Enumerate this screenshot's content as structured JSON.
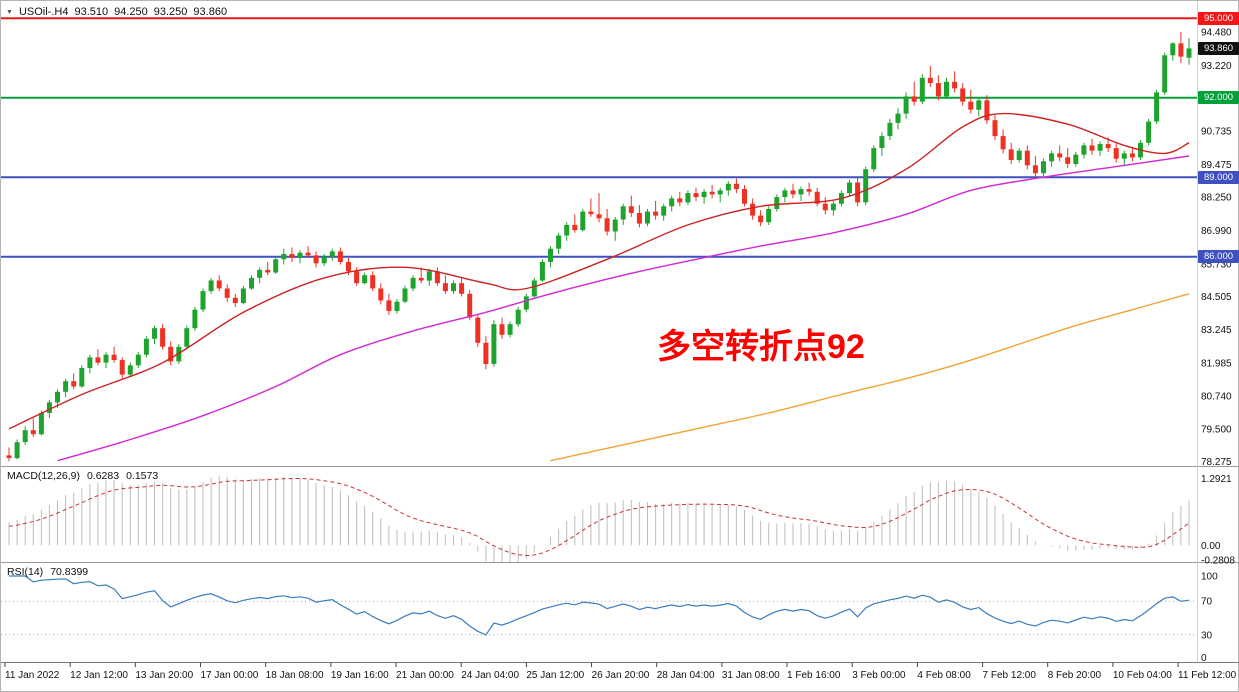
{
  "icons": {
    "chart_dropdown": "▼"
  },
  "chart_data": {
    "type": "candlestick",
    "symbol_title": "USOil-.H4",
    "current_ohlc": {
      "open": "93.510",
      "high": "94.250",
      "low": "93.250",
      "close": "93.860"
    },
    "ylim": [
      78.1,
      95.65
    ],
    "price_ticks": [
      "94.480",
      "93.220",
      "90.735",
      "89.475",
      "88.250",
      "86.990",
      "85.730",
      "84.505",
      "83.245",
      "81.985",
      "80.740",
      "79.500",
      "78.275"
    ],
    "hlines": [
      {
        "price": 95.0,
        "label": "95.000",
        "color": "#f21616"
      },
      {
        "price": 92.0,
        "label": "92.000",
        "color": "#00a13a"
      },
      {
        "price": 89.0,
        "label": "89.000",
        "color": "#3f51c1"
      },
      {
        "price": 86.0,
        "label": "86.000",
        "color": "#3f51c1"
      }
    ],
    "current_price_badge": {
      "price": 93.86,
      "label": "93.860",
      "bg": "#111111"
    },
    "annotation": {
      "text": "多空转折点92",
      "color": "#ff0000"
    },
    "colors": {
      "up": "#1ea32e",
      "down": "#ef3124"
    },
    "candles": [
      [
        78.5,
        78.8,
        78.28,
        78.4
      ],
      [
        78.4,
        79.1,
        78.35,
        79.0
      ],
      [
        79.0,
        79.6,
        78.9,
        79.45
      ],
      [
        79.45,
        79.9,
        79.2,
        79.3
      ],
      [
        79.3,
        80.2,
        79.25,
        80.1
      ],
      [
        80.1,
        80.6,
        79.9,
        80.5
      ],
      [
        80.5,
        81.0,
        80.3,
        80.9
      ],
      [
        80.9,
        81.4,
        80.7,
        81.3
      ],
      [
        81.3,
        81.6,
        81.0,
        81.1
      ],
      [
        81.1,
        81.9,
        81.05,
        81.8
      ],
      [
        81.8,
        82.3,
        81.6,
        82.2
      ],
      [
        82.2,
        82.5,
        81.9,
        82.0
      ],
      [
        82.0,
        82.4,
        81.8,
        82.3
      ],
      [
        82.3,
        82.6,
        82.0,
        82.1
      ],
      [
        82.1,
        82.2,
        81.4,
        81.55
      ],
      [
        81.55,
        82.0,
        81.45,
        81.9
      ],
      [
        81.9,
        82.4,
        81.8,
        82.3
      ],
      [
        82.3,
        83.0,
        82.2,
        82.9
      ],
      [
        82.9,
        83.4,
        82.7,
        83.3
      ],
      [
        83.3,
        83.45,
        82.5,
        82.6
      ],
      [
        82.6,
        82.8,
        81.9,
        82.05
      ],
      [
        82.05,
        82.7,
        81.95,
        82.6
      ],
      [
        82.6,
        83.4,
        82.55,
        83.3
      ],
      [
        83.3,
        84.1,
        83.2,
        84.0
      ],
      [
        84.0,
        84.8,
        83.9,
        84.7
      ],
      [
        84.7,
        85.2,
        84.6,
        85.1
      ],
      [
        85.1,
        85.3,
        84.7,
        84.8
      ],
      [
        84.8,
        84.95,
        84.3,
        84.45
      ],
      [
        84.45,
        84.6,
        84.1,
        84.25
      ],
      [
        84.25,
        84.9,
        84.2,
        84.8
      ],
      [
        84.8,
        85.3,
        84.75,
        85.2
      ],
      [
        85.2,
        85.6,
        85.0,
        85.5
      ],
      [
        85.5,
        85.8,
        85.3,
        85.4
      ],
      [
        85.4,
        86.0,
        85.35,
        85.9
      ],
      [
        85.9,
        86.3,
        85.7,
        86.1
      ],
      [
        86.1,
        86.35,
        85.8,
        85.95
      ],
      [
        85.95,
        86.25,
        85.75,
        86.15
      ],
      [
        86.15,
        86.4,
        85.95,
        86.05
      ],
      [
        86.05,
        86.2,
        85.6,
        85.75
      ],
      [
        85.75,
        86.1,
        85.65,
        86.0
      ],
      [
        86.0,
        86.3,
        85.85,
        86.2
      ],
      [
        86.2,
        86.35,
        85.7,
        85.8
      ],
      [
        85.8,
        85.95,
        85.3,
        85.45
      ],
      [
        85.45,
        85.6,
        84.9,
        85.0
      ],
      [
        85.0,
        85.4,
        84.95,
        85.3
      ],
      [
        85.3,
        85.45,
        84.7,
        84.8
      ],
      [
        84.8,
        85.0,
        84.2,
        84.35
      ],
      [
        84.35,
        84.6,
        83.8,
        83.95
      ],
      [
        83.95,
        84.4,
        83.85,
        84.3
      ],
      [
        84.3,
        84.9,
        84.25,
        84.8
      ],
      [
        84.8,
        85.3,
        84.7,
        85.2
      ],
      [
        85.2,
        85.6,
        85.0,
        85.1
      ],
      [
        85.1,
        85.55,
        84.9,
        85.45
      ],
      [
        85.45,
        85.6,
        84.9,
        85.0
      ],
      [
        85.0,
        85.3,
        84.6,
        84.7
      ],
      [
        84.7,
        85.1,
        84.6,
        85.0
      ],
      [
        85.0,
        85.2,
        84.5,
        84.6
      ],
      [
        84.6,
        84.75,
        83.6,
        83.7
      ],
      [
        83.7,
        83.85,
        82.6,
        82.75
      ],
      [
        82.75,
        83.0,
        81.75,
        81.95
      ],
      [
        81.95,
        83.6,
        81.85,
        83.45
      ],
      [
        83.45,
        83.7,
        82.9,
        83.05
      ],
      [
        83.05,
        83.55,
        82.95,
        83.45
      ],
      [
        83.45,
        84.1,
        83.35,
        84.0
      ],
      [
        84.0,
        84.6,
        83.9,
        84.5
      ],
      [
        84.5,
        85.2,
        84.4,
        85.1
      ],
      [
        85.1,
        85.9,
        85.05,
        85.8
      ],
      [
        85.8,
        86.4,
        85.6,
        86.3
      ],
      [
        86.3,
        86.9,
        86.1,
        86.8
      ],
      [
        86.8,
        87.3,
        86.6,
        87.2
      ],
      [
        87.2,
        87.6,
        86.9,
        87.0
      ],
      [
        87.0,
        87.8,
        86.95,
        87.7
      ],
      [
        87.7,
        88.2,
        87.5,
        87.6
      ],
      [
        87.6,
        88.4,
        87.3,
        87.45
      ],
      [
        87.45,
        87.8,
        86.8,
        86.95
      ],
      [
        86.95,
        87.5,
        86.6,
        87.4
      ],
      [
        87.4,
        88.0,
        87.2,
        87.9
      ],
      [
        87.9,
        88.3,
        87.5,
        87.65
      ],
      [
        87.65,
        87.95,
        87.1,
        87.25
      ],
      [
        87.25,
        87.8,
        87.15,
        87.7
      ],
      [
        87.7,
        88.1,
        87.4,
        87.55
      ],
      [
        87.55,
        88.0,
        87.35,
        87.9
      ],
      [
        87.9,
        88.3,
        87.7,
        88.2
      ],
      [
        88.2,
        88.45,
        87.9,
        88.05
      ],
      [
        88.05,
        88.5,
        87.95,
        88.4
      ],
      [
        88.4,
        88.6,
        88.1,
        88.25
      ],
      [
        88.25,
        88.55,
        88.0,
        88.45
      ],
      [
        88.45,
        88.7,
        88.2,
        88.35
      ],
      [
        88.35,
        88.6,
        88.05,
        88.5
      ],
      [
        88.5,
        88.85,
        88.3,
        88.75
      ],
      [
        88.75,
        88.95,
        88.4,
        88.55
      ],
      [
        88.55,
        88.7,
        87.9,
        88.0
      ],
      [
        88.0,
        88.2,
        87.4,
        87.55
      ],
      [
        87.55,
        87.75,
        87.15,
        87.3
      ],
      [
        87.3,
        87.9,
        87.2,
        87.8
      ],
      [
        87.8,
        88.35,
        87.7,
        88.25
      ],
      [
        88.25,
        88.6,
        88.05,
        88.5
      ],
      [
        88.5,
        88.75,
        88.2,
        88.35
      ],
      [
        88.35,
        88.65,
        88.1,
        88.55
      ],
      [
        88.55,
        88.8,
        88.3,
        88.45
      ],
      [
        88.45,
        88.6,
        87.9,
        88.0
      ],
      [
        88.0,
        88.25,
        87.6,
        87.75
      ],
      [
        87.75,
        88.1,
        87.55,
        88.0
      ],
      [
        88.0,
        88.5,
        87.9,
        88.4
      ],
      [
        88.4,
        88.9,
        88.3,
        88.8
      ],
      [
        88.8,
        89.0,
        87.9,
        88.05
      ],
      [
        88.05,
        89.4,
        87.95,
        89.3
      ],
      [
        89.3,
        90.2,
        89.2,
        90.1
      ],
      [
        90.1,
        90.7,
        89.8,
        90.55
      ],
      [
        90.55,
        91.2,
        90.4,
        91.05
      ],
      [
        91.05,
        91.6,
        90.8,
        91.4
      ],
      [
        91.4,
        92.2,
        91.2,
        92.05
      ],
      [
        92.05,
        92.6,
        91.7,
        91.85
      ],
      [
        91.85,
        92.9,
        91.75,
        92.75
      ],
      [
        92.75,
        93.2,
        92.4,
        92.55
      ],
      [
        92.55,
        92.85,
        91.9,
        92.05
      ],
      [
        92.05,
        92.75,
        91.95,
        92.6
      ],
      [
        92.6,
        93.0,
        92.2,
        92.35
      ],
      [
        92.35,
        92.55,
        91.7,
        91.85
      ],
      [
        91.85,
        92.3,
        91.4,
        91.55
      ],
      [
        91.55,
        92.0,
        91.3,
        91.9
      ],
      [
        91.9,
        92.1,
        91.0,
        91.15
      ],
      [
        91.15,
        91.35,
        90.4,
        90.55
      ],
      [
        90.55,
        90.8,
        89.9,
        90.05
      ],
      [
        90.05,
        90.3,
        89.5,
        89.65
      ],
      [
        89.65,
        90.1,
        89.55,
        90.0
      ],
      [
        90.0,
        90.2,
        89.3,
        89.45
      ],
      [
        89.45,
        89.8,
        89.0,
        89.15
      ],
      [
        89.15,
        89.7,
        89.05,
        89.6
      ],
      [
        89.6,
        90.0,
        89.4,
        89.9
      ],
      [
        89.9,
        90.2,
        89.6,
        89.75
      ],
      [
        89.75,
        90.1,
        89.35,
        89.5
      ],
      [
        89.5,
        89.95,
        89.4,
        89.85
      ],
      [
        89.85,
        90.3,
        89.7,
        90.2
      ],
      [
        90.2,
        90.45,
        89.85,
        90.0
      ],
      [
        90.0,
        90.35,
        89.8,
        90.25
      ],
      [
        90.25,
        90.5,
        89.95,
        90.1
      ],
      [
        90.1,
        90.3,
        89.55,
        89.7
      ],
      [
        89.7,
        90.0,
        89.45,
        89.9
      ],
      [
        89.9,
        90.15,
        89.6,
        89.75
      ],
      [
        89.75,
        90.4,
        89.65,
        90.3
      ],
      [
        90.3,
        91.2,
        90.2,
        91.1
      ],
      [
        91.1,
        92.3,
        91.0,
        92.2
      ],
      [
        92.2,
        93.7,
        92.1,
        93.6
      ],
      [
        93.6,
        94.1,
        93.4,
        94.05
      ],
      [
        94.05,
        94.48,
        93.3,
        93.55
      ],
      [
        93.51,
        94.25,
        93.25,
        93.86
      ]
    ],
    "ma_lines": [
      {
        "name": "ma-fast-red",
        "color": "#cc2222",
        "anchors": [
          [
            0,
            79.5
          ],
          [
            9,
            80.8
          ],
          [
            19,
            82.0
          ],
          [
            29,
            83.9
          ],
          [
            39,
            85.2
          ],
          [
            49,
            85.6
          ],
          [
            59,
            85.0
          ],
          [
            64,
            84.8
          ],
          [
            74,
            85.9
          ],
          [
            84,
            87.2
          ],
          [
            93,
            87.9
          ],
          [
            103,
            88.2
          ],
          [
            111,
            89.3
          ],
          [
            118,
            90.9
          ],
          [
            123,
            91.4
          ],
          [
            131,
            91.0
          ],
          [
            138,
            90.2
          ],
          [
            143,
            89.9
          ],
          [
            146,
            90.3
          ]
        ]
      },
      {
        "name": "ma-medium-magenta",
        "color": "#d428d4",
        "anchors": [
          [
            6,
            78.3
          ],
          [
            15,
            79.1
          ],
          [
            24,
            80.0
          ],
          [
            33,
            81.1
          ],
          [
            41,
            82.3
          ],
          [
            50,
            83.2
          ],
          [
            59,
            83.9
          ],
          [
            67,
            84.6
          ],
          [
            76,
            85.3
          ],
          [
            85,
            85.9
          ],
          [
            93,
            86.4
          ],
          [
            102,
            86.9
          ],
          [
            111,
            87.6
          ],
          [
            119,
            88.5
          ],
          [
            128,
            89.0
          ],
          [
            137,
            89.4
          ],
          [
            146,
            89.8
          ]
        ]
      },
      {
        "name": "ma-slow-orange",
        "color": "#efa437",
        "anchors": [
          [
            67,
            78.3
          ],
          [
            76,
            78.9
          ],
          [
            85,
            79.5
          ],
          [
            94,
            80.1
          ],
          [
            103,
            80.8
          ],
          [
            111,
            81.4
          ],
          [
            118,
            82.0
          ],
          [
            125,
            82.7
          ],
          [
            132,
            83.4
          ],
          [
            139,
            84.0
          ],
          [
            146,
            84.6
          ]
        ]
      }
    ],
    "time_labels": [
      "11 Jan 2022",
      "12 Jan 12:00",
      "13 Jan 20:00",
      "17 Jan 00:00",
      "18 Jan 08:00",
      "19 Jan 16:00",
      "21 Jan 00:00",
      "24 Jan 04:00",
      "25 Jan 12:00",
      "26 Jan 20:00",
      "28 Jan 04:00",
      "31 Jan 08:00",
      "1 Feb 16:00",
      "3 Feb 00:00",
      "4 Feb 08:00",
      "7 Feb 12:00",
      "8 Feb 20:00",
      "10 Feb 04:00",
      "11 Feb 12:00"
    ],
    "macd": {
      "label": "MACD(12,26,9)",
      "value_main": "0.6283",
      "value_signal": "0.1573",
      "params": [
        12,
        26,
        9
      ],
      "vlim": [
        -0.32,
        1.51
      ],
      "axis_labels": [
        {
          "text": "1.2921",
          "value": 1.2921
        },
        {
          "text": "0.00",
          "value": 0
        },
        {
          "text": "-0.2808",
          "value": -0.2808
        }
      ],
      "histogram_color": "#bdbdbd",
      "signal_color": "#cc3333"
    },
    "rsi": {
      "label": "RSI(14)",
      "value": "70.8399",
      "period": 14,
      "levels": [
        70,
        30
      ],
      "vlim": [
        0,
        100
      ],
      "axis_labels": [
        {
          "text": "100",
          "value": 100
        },
        {
          "text": "70",
          "value": 70
        },
        {
          "text": "30",
          "value": 30
        },
        {
          "text": "0",
          "value": 0
        }
      ],
      "line_color": "#3b7bbf"
    }
  }
}
